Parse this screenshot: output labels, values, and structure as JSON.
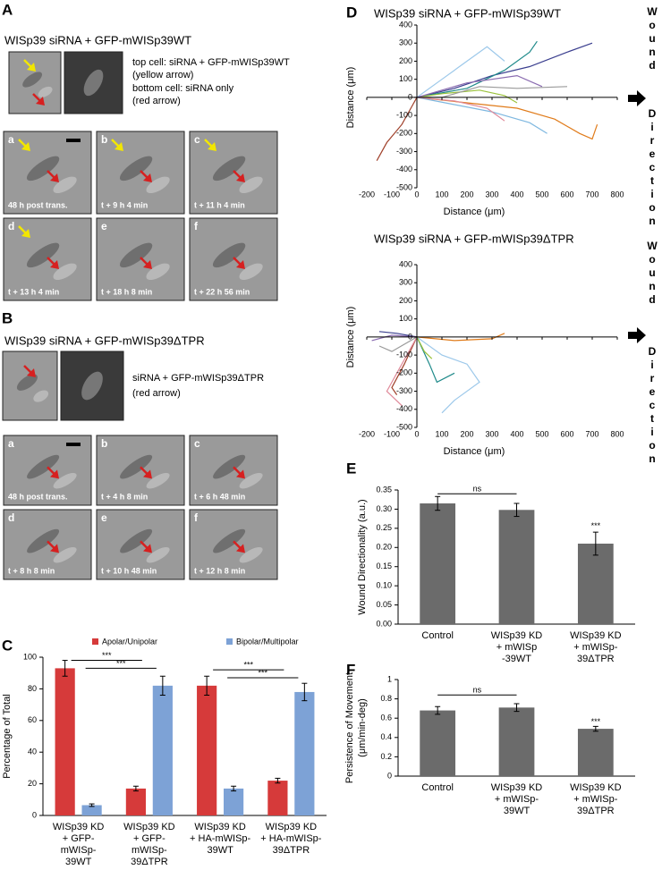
{
  "panels": [
    {
      "label": "A",
      "title": "WISp39 siRNA + GFP-mWISp39WT",
      "notes": [
        "top cell: siRNA + GFP-mWISp39WT",
        "(yellow arrow)",
        "bottom cell: siRNA only",
        "(red arrow)"
      ],
      "frames": [
        {
          "letter": "a",
          "time": "48 h post trans."
        },
        {
          "letter": "b",
          "time": "t + 9 h 4 min"
        },
        {
          "letter": "c",
          "time": "t + 11 h 4 min"
        },
        {
          "letter": "d",
          "time": "t + 13 h 4 min"
        },
        {
          "letter": "e",
          "time": "t + 18 h 8 min"
        },
        {
          "letter": "f",
          "time": "t + 22 h 56 min"
        }
      ]
    },
    {
      "label": "B",
      "title": "WISp39 siRNA + GFP-mWISp39ΔTPR",
      "notes": [
        "siRNA + GFP-mWISp39ΔTPR",
        "(red arrow)"
      ],
      "frames": [
        {
          "letter": "a",
          "time": "48 h post trans."
        },
        {
          "letter": "b",
          "time": "t + 4 h 8 min"
        },
        {
          "letter": "c",
          "time": "t + 6 h 48 min"
        },
        {
          "letter": "d",
          "time": "t + 8 h 8 min"
        },
        {
          "letter": "e",
          "time": "t + 10 h 48 min"
        },
        {
          "letter": "f",
          "time": "t + 12 h 8 min"
        }
      ]
    }
  ],
  "chart_data": [
    {
      "type": "bar",
      "panel_label": "C",
      "ylabel": [
        "Percentage of  Total"
      ],
      "categories": [
        [
          "WISp39 KD",
          "+ GFP-",
          "mWISp-",
          "39WT"
        ],
        [
          "WISp39 KD",
          "+ GFP-",
          "mWISp-",
          "39ΔTPR"
        ],
        [
          "WISp39 KD",
          "+ HA-mWISp-",
          "39WT"
        ],
        [
          "WISp39 KD",
          "+ HA-mWISp-",
          "39ΔTPR"
        ]
      ],
      "series": [
        {
          "name": "Apolar/Unipolar",
          "color": "#d63a3a",
          "values": [
            93,
            17,
            82,
            22
          ],
          "errors": [
            5,
            1.5,
            6,
            1.5
          ]
        },
        {
          "name": "Bipolar/Multipolar",
          "color": "#7da2d6",
          "values": [
            6.5,
            82,
            17,
            78
          ],
          "errors": [
            0.8,
            6,
            1.5,
            5.5
          ]
        }
      ],
      "ylim": [
        0,
        100
      ],
      "yticks": [
        0,
        20,
        40,
        60,
        80,
        100
      ],
      "legend": "top",
      "annotations": [
        {
          "text": "***",
          "from": 0,
          "to": 1,
          "y": 98
        },
        {
          "text": "***",
          "from": 0,
          "to": 1,
          "y": 93
        },
        {
          "text": "***",
          "from": 2,
          "to": 3,
          "y": 92
        },
        {
          "text": "***",
          "from": 2,
          "to": 3,
          "y": 87
        }
      ]
    },
    {
      "type": "line",
      "panel_label": "D",
      "title": "WISp39 siRNA + GFP-mWISp39WT",
      "xlabel": "Distance  (μm)",
      "ylabel": "Distance  (μm)",
      "side_label": [
        "Wound",
        "Direction"
      ],
      "xlim": [
        -200,
        800
      ],
      "xticks": [
        -200,
        -100,
        0,
        100,
        200,
        300,
        400,
        500,
        600,
        700,
        800
      ],
      "ylim": [
        -500,
        400
      ],
      "yticks": [
        -500,
        -400,
        -300,
        -200,
        -100,
        0,
        100,
        200,
        300,
        400
      ],
      "series": [
        {
          "color": "#3b3f8f",
          "x": [
            0,
            150,
            300,
            450,
            600,
            700
          ],
          "values": [
            0,
            50,
            120,
            170,
            250,
            300
          ]
        },
        {
          "color": "#1f8a8a",
          "x": [
            0,
            200,
            350,
            450,
            480
          ],
          "values": [
            0,
            50,
            150,
            250,
            310
          ]
        },
        {
          "color": "#e07b1a",
          "x": [
            0,
            200,
            400,
            550,
            650,
            700,
            720
          ],
          "values": [
            0,
            -30,
            -60,
            -120,
            -200,
            -230,
            -150
          ]
        },
        {
          "color": "#7fb8e0",
          "x": [
            0,
            150,
            300,
            450,
            520
          ],
          "values": [
            0,
            -40,
            -80,
            -140,
            -200
          ]
        },
        {
          "color": "#a0402a",
          "x": [
            0,
            -20,
            -60,
            -120,
            -160
          ],
          "values": [
            0,
            -50,
            -150,
            -250,
            -350
          ]
        },
        {
          "color": "#9bc23c",
          "x": [
            0,
            100,
            250,
            350,
            400
          ],
          "values": [
            0,
            20,
            40,
            10,
            -30
          ]
        },
        {
          "color": "#9cc8ea",
          "x": [
            0,
            100,
            200,
            280,
            350
          ],
          "values": [
            0,
            100,
            200,
            280,
            200
          ]
        },
        {
          "color": "#e08a9a",
          "x": [
            0,
            150,
            280,
            350
          ],
          "values": [
            0,
            -20,
            -60,
            -130
          ]
        },
        {
          "color": "#9a9a9a",
          "x": [
            0,
            100,
            250,
            400,
            600
          ],
          "values": [
            0,
            0,
            60,
            50,
            60
          ]
        },
        {
          "color": "#8a6bb0",
          "x": [
            0,
            200,
            400,
            500
          ],
          "values": [
            0,
            80,
            120,
            60
          ]
        }
      ]
    },
    {
      "type": "line",
      "title": "WISp39 siRNA + GFP-mWISp39ΔTPR",
      "xlabel": "Distance  (μm)",
      "ylabel": "Distance  (μm)",
      "side_label": [
        "Wound",
        "Direction"
      ],
      "xlim": [
        -200,
        800
      ],
      "xticks": [
        -200,
        -100,
        0,
        100,
        200,
        300,
        400,
        500,
        600,
        700,
        800
      ],
      "ylim": [
        -500,
        400
      ],
      "yticks": [
        -500,
        -400,
        -300,
        -200,
        -100,
        0,
        100,
        200,
        300,
        400
      ],
      "series": [
        {
          "color": "#e07b1a",
          "x": [
            0,
            150,
            300,
            350
          ],
          "values": [
            0,
            -20,
            -10,
            20
          ]
        },
        {
          "color": "#3b3f8f",
          "x": [
            0,
            -80,
            -150
          ],
          "values": [
            0,
            20,
            30
          ]
        },
        {
          "color": "#8a6bb0",
          "x": [
            0,
            -100,
            -180
          ],
          "values": [
            0,
            10,
            -20
          ]
        },
        {
          "color": "#9cc8ea",
          "x": [
            0,
            100,
            200,
            250,
            150,
            100
          ],
          "values": [
            0,
            -100,
            -150,
            -250,
            -350,
            -420
          ]
        },
        {
          "color": "#a0402a",
          "x": [
            0,
            -50,
            -100,
            -80
          ],
          "values": [
            0,
            -150,
            -280,
            -320
          ]
        },
        {
          "color": "#e08a9a",
          "x": [
            0,
            -80,
            -120,
            -60
          ],
          "values": [
            0,
            -200,
            -300,
            -380
          ]
        },
        {
          "color": "#1f8a8a",
          "x": [
            0,
            50,
            80,
            150
          ],
          "values": [
            0,
            -150,
            -250,
            -200
          ]
        },
        {
          "color": "#9bc23c",
          "x": [
            0,
            30,
            60
          ],
          "values": [
            0,
            -80,
            -120
          ]
        },
        {
          "color": "#9a9a9a",
          "x": [
            0,
            -100,
            -150
          ],
          "values": [
            0,
            -80,
            -50
          ]
        }
      ]
    },
    {
      "type": "bar",
      "panel_label": "E",
      "ylabel": [
        "Wound Directionality (a.u.)"
      ],
      "categories": [
        [
          "Control"
        ],
        [
          "WISp39 KD",
          "+ mWISp",
          "-39WT"
        ],
        [
          "WISp39 KD",
          "+ mWISp-",
          "39ΔTPR"
        ]
      ],
      "series": [
        {
          "color": "#6b6b6b",
          "values": [
            0.315,
            0.298,
            0.21
          ],
          "errors": [
            0.018,
            0.017,
            0.03
          ]
        }
      ],
      "ylim": [
        0,
        0.35
      ],
      "yticks": [
        {
          "value": 0,
          "label": "0.00"
        },
        {
          "value": 0.05,
          "label": "0.05"
        },
        {
          "value": 0.1,
          "label": "0.10"
        },
        {
          "value": 0.15,
          "label": "0.15"
        },
        {
          "value": 0.2,
          "label": "0.20"
        },
        {
          "value": 0.25,
          "label": "0.25"
        },
        {
          "value": 0.3,
          "label": "0.30"
        },
        {
          "value": 0.35,
          "label": "0.35"
        }
      ],
      "annotations": [
        {
          "text": "ns",
          "from": 0,
          "to": 1,
          "y": 0.34
        },
        {
          "text": "***",
          "at": 2,
          "y": 0.255
        }
      ]
    },
    {
      "type": "bar",
      "panel_label": "F",
      "ylabel": [
        "Persistence of Movement",
        "(μm/min-deg)"
      ],
      "categories": [
        [
          "Control"
        ],
        [
          "WISp39 KD",
          "+ mWISp-",
          "39WT"
        ],
        [
          "WISp39 KD",
          "+ mWISp-",
          "39ΔTPR"
        ]
      ],
      "series": [
        {
          "color": "#6b6b6b",
          "values": [
            0.68,
            0.71,
            0.49
          ],
          "errors": [
            0.04,
            0.04,
            0.025
          ]
        }
      ],
      "ylim": [
        0,
        1
      ],
      "yticks": [
        0,
        0.2,
        0.4,
        0.6,
        0.8,
        1
      ],
      "annotations": [
        {
          "text": "ns",
          "from": 0,
          "to": 1,
          "y": 0.84
        },
        {
          "text": "***",
          "at": 2,
          "y": 0.56
        }
      ]
    }
  ]
}
